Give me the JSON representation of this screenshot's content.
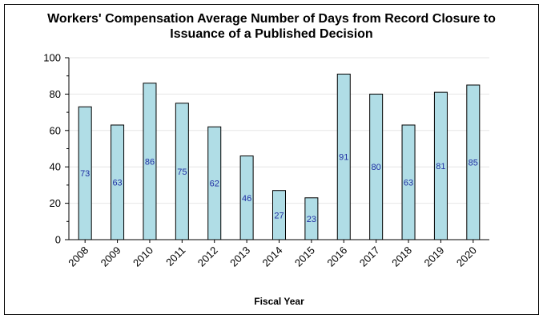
{
  "chart_data": {
    "type": "bar",
    "title_lines": [
      "Workers' Compensation Average Number of Days from Record Closure to",
      "Issuance of a Published Decision"
    ],
    "xlabel": "Fiscal Year",
    "ylabel": "",
    "categories": [
      "2008",
      "2009",
      "2010",
      "2011",
      "2012",
      "2013",
      "2014",
      "2015",
      "2016",
      "2017",
      "2018",
      "2019",
      "2020"
    ],
    "values": [
      73,
      63,
      86,
      75,
      62,
      46,
      27,
      23,
      91,
      80,
      63,
      81,
      85
    ],
    "ylim": [
      0,
      100
    ],
    "yticks": [
      0,
      20,
      40,
      60,
      80,
      100
    ],
    "grid": true,
    "colors": {
      "bar_fill": "#b0dde6",
      "bar_stroke": "#000000",
      "data_label": "#1f2fa3",
      "grid": "#e6e6e6"
    }
  }
}
